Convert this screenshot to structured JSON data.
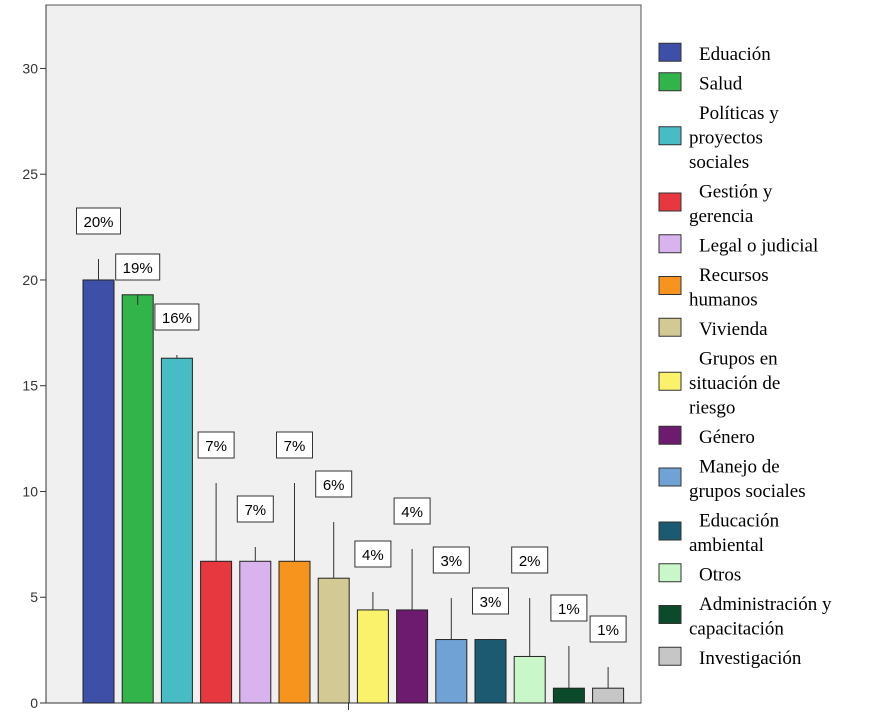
{
  "chart_data": {
    "type": "bar",
    "categories": [
      "Eduación",
      "Salud",
      "Políticas y proyectos sociales",
      "Gestión y gerencia",
      "Legal o judicial",
      "Recursos humanos",
      "Vivienda",
      "Grupos en situación de riesgo",
      "Género",
      "Manejo de grupos sociales",
      "Educación ambiental",
      "Otros",
      "Administración y capacitación",
      "Investigación"
    ],
    "values": [
      20.0,
      19.3,
      16.3,
      6.7,
      6.7,
      6.7,
      5.9,
      4.4,
      4.4,
      3.0,
      3.0,
      2.2,
      0.7,
      0.7
    ],
    "data_labels": [
      "20%",
      "19%",
      "16%",
      "7%",
      "7%",
      "7%",
      "6%",
      "4%",
      "4%",
      "3%",
      "3%",
      "2%",
      "1%",
      "1%"
    ],
    "colors": [
      "#3d4fa6",
      "#33b44a",
      "#48bcc4",
      "#e8383f",
      "#d8b3ee",
      "#f7941d",
      "#d2c994",
      "#fbf26c",
      "#6d1b6e",
      "#71a2d6",
      "#1c5a72",
      "#c9f7c9",
      "#0c4a2c",
      "#c6c6c6"
    ],
    "legend_lines": [
      [
        "Eduación"
      ],
      [
        "Salud"
      ],
      [
        "Políticas y",
        "proyectos",
        "sociales"
      ],
      [
        "Gestión y",
        "gerencia"
      ],
      [
        "Legal o judicial"
      ],
      [
        "Recursos",
        "humanos"
      ],
      [
        "Vivienda"
      ],
      [
        "Grupos en",
        "situación de",
        "riesgo"
      ],
      [
        "Género"
      ],
      [
        "Manejo de",
        "grupos sociales"
      ],
      [
        "Educación",
        "ambiental"
      ],
      [
        "Otros"
      ],
      [
        "Administración y",
        "capacitación"
      ],
      [
        "Investigación"
      ]
    ],
    "y_ticks": [
      0,
      5,
      10,
      15,
      20,
      25,
      30
    ],
    "ylim": [
      0,
      33
    ],
    "title": "",
    "xlabel": "",
    "ylabel": "",
    "grid": false,
    "legend_position": "right",
    "plot_background": "#f0f0f0"
  }
}
